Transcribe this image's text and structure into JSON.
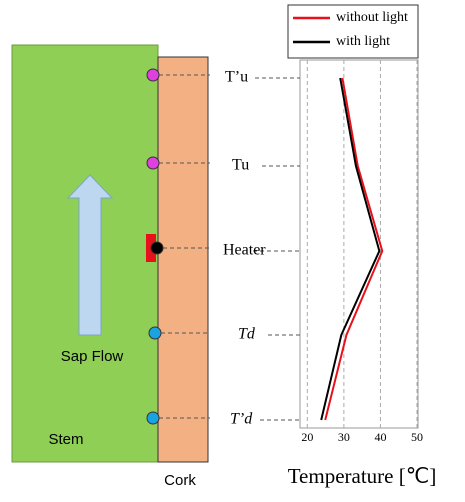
{
  "diagram": {
    "stem": "Stem",
    "cork": "Cork",
    "sap_flow": "Sap Flow"
  },
  "chart_data": {
    "type": "line",
    "xlabel": "Temperature [℃]",
    "categories": [
      "T’u",
      "Tu",
      "Heater",
      "Td",
      "T’d"
    ],
    "series": [
      {
        "name": "without light",
        "color": "#e8111b",
        "values": [
          29.6,
          33.8,
          40.5,
          30.7,
          24.9
        ]
      },
      {
        "name": "with light",
        "color": "#000000",
        "values": [
          29,
          33.3,
          39.7,
          29.3,
          23.8
        ]
      }
    ],
    "xlim": [
      18,
      50
    ],
    "xticks": [
      20,
      30,
      40,
      50
    ],
    "grid": true,
    "legend": "top"
  }
}
